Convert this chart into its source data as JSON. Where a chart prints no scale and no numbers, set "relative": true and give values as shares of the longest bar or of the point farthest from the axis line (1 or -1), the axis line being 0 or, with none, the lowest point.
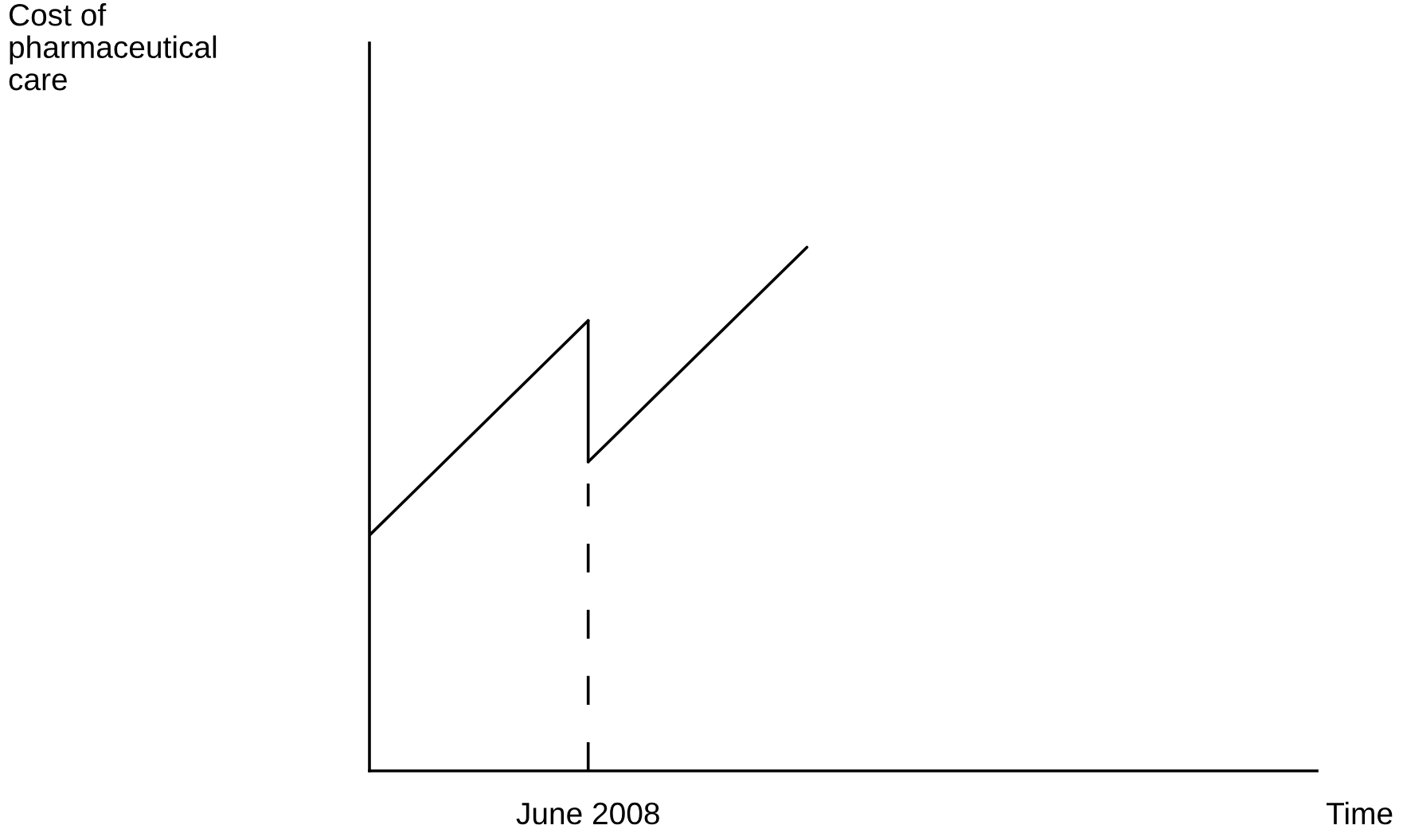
{
  "chart_data": {
    "type": "line",
    "relative": true,
    "xlabel": "Time",
    "annotations": [
      "Cost of\npharmaceutical\ncare",
      "June 2008"
    ],
    "categories": [
      null,
      null,
      null,
      null,
      null
    ],
    "series": [
      {
        "color": "#000000",
        "values": [
          0.45,
          0.86,
          null,
          null,
          null
        ]
      },
      {
        "color": "#000000",
        "values": [
          null,
          0.59,
          1.0,
          null,
          null
        ]
      }
    ]
  }
}
